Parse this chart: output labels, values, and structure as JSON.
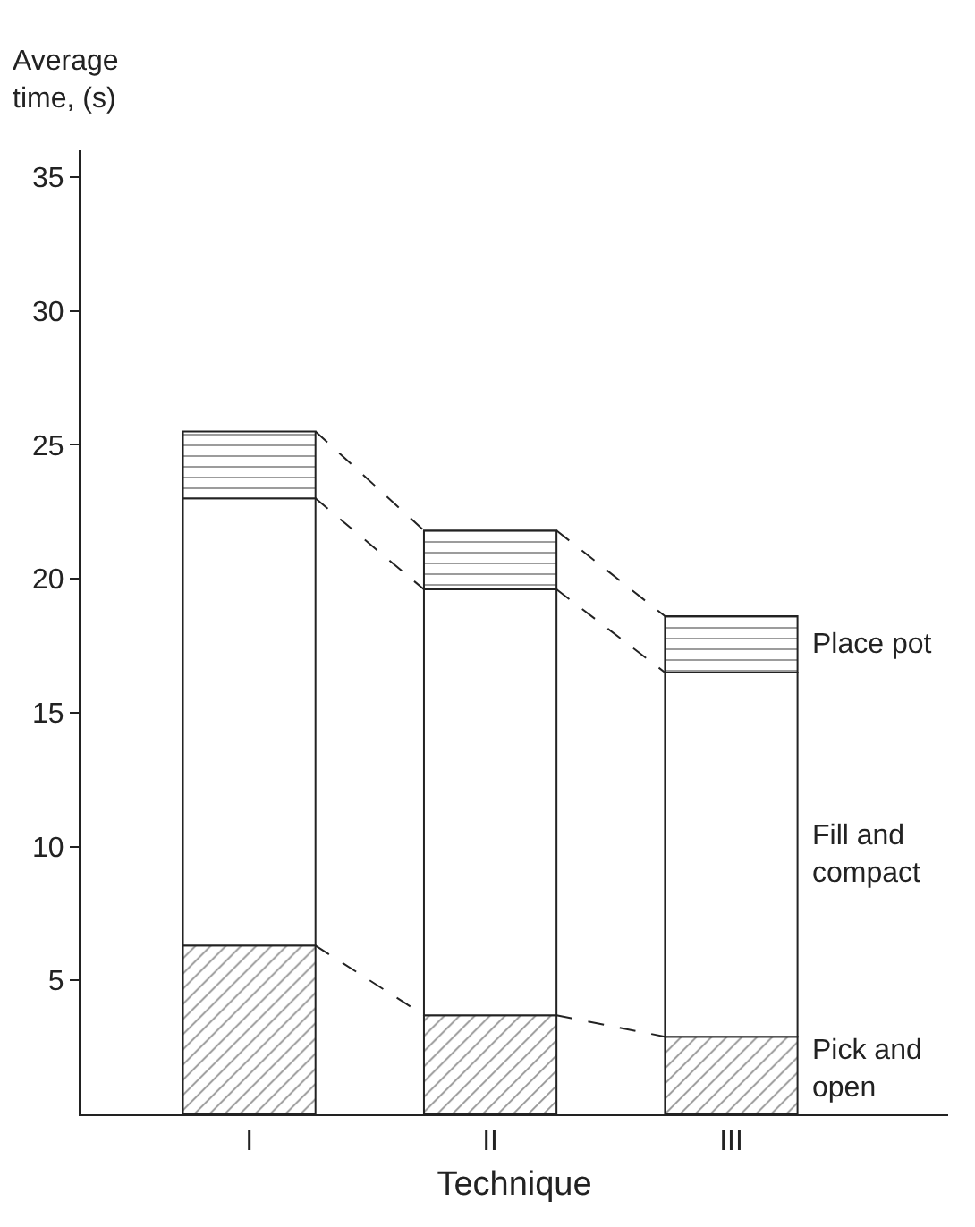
{
  "chart_data": {
    "type": "bar",
    "stacked": true,
    "xlabel": "Technique",
    "ylabel": "Average time, (s)",
    "categories": [
      "I",
      "II",
      "III"
    ],
    "series": [
      {
        "name": "Pick and open",
        "color": "#222222",
        "values": [
          6.3,
          3.7,
          2.9
        ]
      },
      {
        "name": "Fill and compact",
        "color": "#ffffff",
        "values": [
          16.7,
          15.9,
          13.6
        ]
      },
      {
        "name": "Place pot",
        "color": "#222222",
        "values": [
          2.5,
          2.2,
          2.1
        ]
      }
    ],
    "ylim": [
      0,
      36
    ],
    "yticks": [
      5,
      10,
      15,
      20,
      25,
      30,
      35
    ],
    "legend": false
  }
}
